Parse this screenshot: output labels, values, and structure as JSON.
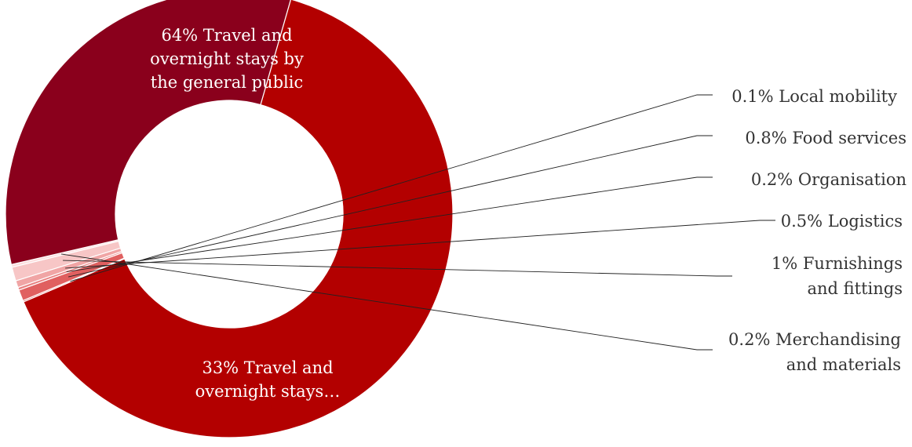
{
  "chart_data": {
    "type": "pie",
    "variant": "donut",
    "start_angle_deg": 74,
    "direction": "clockwise",
    "slices": [
      {
        "value": 64,
        "display": "64%",
        "label": "Travel and overnight stays by the general public",
        "text_lines": [
          "64% Travel and",
          "overnight stays by",
          "the general public"
        ],
        "color": "#B30000",
        "label_position": "inside"
      },
      {
        "value": 0.1,
        "display": "0.1%",
        "label": "Local mobility",
        "text_lines": [
          "0.1% Local mobility"
        ],
        "color": "#D94545",
        "label_position": "outside"
      },
      {
        "value": 0.8,
        "display": "0.8%",
        "label": "Food services",
        "text_lines": [
          "0.8% Food services"
        ],
        "color": "#E06060",
        "label_position": "outside"
      },
      {
        "value": 0.2,
        "display": "0.2%",
        "label": "Organisation",
        "text_lines": [
          "0.2% Organisation"
        ],
        "color": "#E88080",
        "label_position": "outside"
      },
      {
        "value": 0.5,
        "display": "0.5%",
        "label": "Logistics",
        "text_lines": [
          "0.5% Logistics"
        ],
        "color": "#F0A5A5",
        "label_position": "outside"
      },
      {
        "value": 1,
        "display": "1%",
        "label": "Furnishings and fittings",
        "text_lines": [
          "1% Furnishings",
          "and fittings"
        ],
        "color": "#F7C6C6",
        "label_position": "outside"
      },
      {
        "value": 0.2,
        "display": "0.2%",
        "label": "Merchandising and materials",
        "text_lines": [
          "0.2% Merchandising",
          "and materials"
        ],
        "color": "#FCDEDE",
        "label_position": "outside"
      },
      {
        "value": 33,
        "display": "33%",
        "label": "Travel and overnight stays…",
        "text_lines": [
          "33% Travel and",
          "overnight stays…"
        ],
        "color": "#8A001C",
        "label_position": "inside"
      }
    ]
  }
}
